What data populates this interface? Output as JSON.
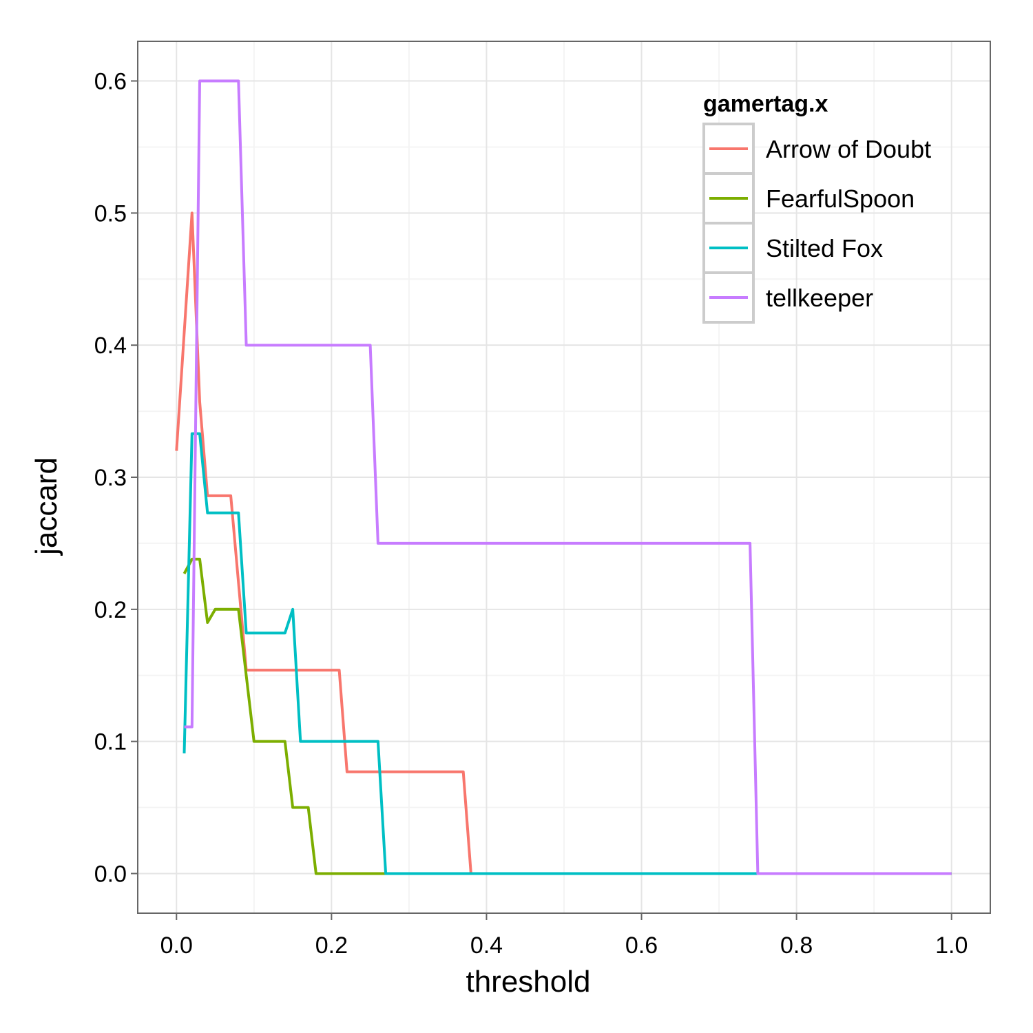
{
  "chart_data": {
    "type": "line",
    "xlabel": "threshold",
    "ylabel": "jaccard",
    "xlim": [
      -0.05,
      1.05
    ],
    "ylim": [
      -0.03,
      0.63
    ],
    "xticks": [
      0.0,
      0.2,
      0.4,
      0.6,
      0.8,
      1.0
    ],
    "xtick_labels": [
      "0.0",
      "0.2",
      "0.4",
      "0.6",
      "0.8",
      "1.0"
    ],
    "yticks": [
      0.0,
      0.1,
      0.2,
      0.3,
      0.4,
      0.5,
      0.6
    ],
    "ytick_labels": [
      "0.0",
      "0.1",
      "0.2",
      "0.3",
      "0.4",
      "0.5",
      "0.6"
    ],
    "grid": true,
    "legend": {
      "title": "gamertag.x",
      "position": "top-right"
    },
    "series": [
      {
        "name": "Arrow of Doubt",
        "color": "#F8766D",
        "x": [
          0.0,
          0.02,
          0.03,
          0.04,
          0.07,
          0.09,
          0.21,
          0.22,
          0.37,
          0.38,
          1.0
        ],
        "y": [
          0.32,
          0.5,
          0.357,
          0.286,
          0.286,
          0.154,
          0.154,
          0.077,
          0.077,
          0.0,
          0.0
        ]
      },
      {
        "name": "FearfulSpoon",
        "color": "#7CAE00",
        "x": [
          0.01,
          0.02,
          0.03,
          0.04,
          0.05,
          0.08,
          0.1,
          0.14,
          0.15,
          0.17,
          0.18,
          1.0
        ],
        "y": [
          0.227,
          0.238,
          0.238,
          0.19,
          0.2,
          0.2,
          0.1,
          0.1,
          0.05,
          0.05,
          0.0,
          0.0
        ]
      },
      {
        "name": "Stilted Fox",
        "color": "#00BFC4",
        "x": [
          0.01,
          0.02,
          0.03,
          0.04,
          0.08,
          0.09,
          0.14,
          0.15,
          0.16,
          0.26,
          0.27,
          1.0
        ],
        "y": [
          0.091,
          0.333,
          0.333,
          0.273,
          0.273,
          0.182,
          0.182,
          0.2,
          0.1,
          0.1,
          0.0,
          0.0
        ]
      },
      {
        "name": "tellkeeper",
        "color": "#C77CFF",
        "x": [
          0.01,
          0.02,
          0.03,
          0.08,
          0.09,
          0.25,
          0.26,
          0.74,
          0.75,
          1.0
        ],
        "y": [
          0.111,
          0.111,
          0.6,
          0.6,
          0.4,
          0.4,
          0.25,
          0.25,
          0.0,
          0.0
        ]
      }
    ]
  }
}
